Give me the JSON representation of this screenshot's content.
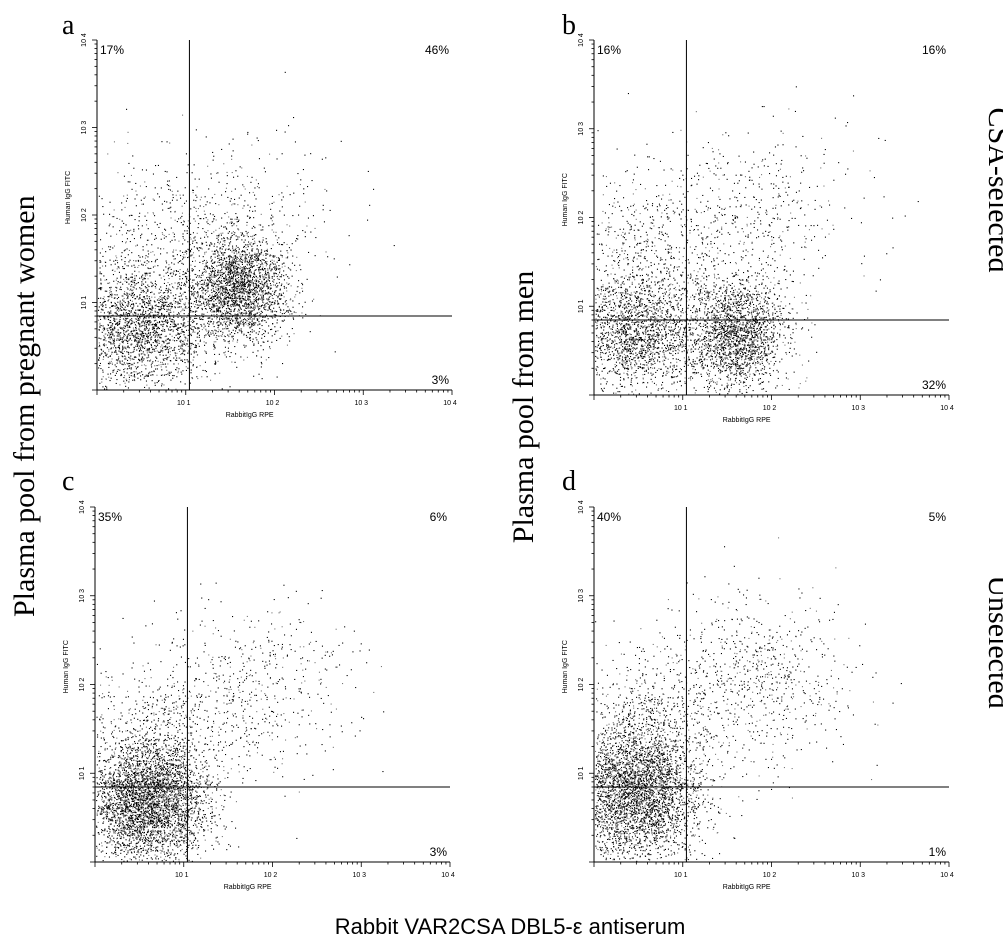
{
  "figure": {
    "left_label": "Plasma pool from pregnant women",
    "middle_label": "Plasma pool from men",
    "right_top_label": "CSA-selected",
    "right_bottom_label": "Unselected",
    "bottom_label": "Rabbit VAR2CSA DBL5-ε antiserum"
  },
  "chart_data": [
    {
      "type": "scatter",
      "panel": "a",
      "xlabel": "RabbitIgG RPE",
      "ylabel": "Human IgG FITC",
      "xscale": "log",
      "yscale": "log",
      "xlim": [
        1,
        10000
      ],
      "ylim": [
        1,
        10000
      ],
      "x_ticks": [
        "10 1",
        "10 2",
        "10 3",
        "10 4"
      ],
      "y_ticks": [
        "10 1",
        "10 2",
        "10 3",
        "10 4"
      ],
      "gate": {
        "x": 11,
        "y": 7
      },
      "quadrants": {
        "UL": "17%",
        "UR": "46%",
        "LR": "3%"
      },
      "populations": [
        {
          "cx": 3,
          "cy": 5,
          "sx": 2.6,
          "sy": 2.2,
          "n": 2200
        },
        {
          "cx": 40,
          "cy": 15,
          "sx": 1.9,
          "sy": 2.0,
          "n": 2400
        },
        {
          "cx": 4,
          "cy": 40,
          "sx": 3,
          "sy": 3,
          "n": 500
        },
        {
          "cx": 40,
          "cy": 90,
          "sx": 4,
          "sy": 3,
          "n": 350
        }
      ]
    },
    {
      "type": "scatter",
      "panel": "b",
      "xlabel": "RabbitIgG RPE",
      "ylabel": "Human IgG FITC",
      "xscale": "log",
      "yscale": "log",
      "xlim": [
        1,
        10000
      ],
      "ylim": [
        1,
        10000
      ],
      "x_ticks": [
        "10 1",
        "10 2",
        "10 3",
        "10 4"
      ],
      "y_ticks": [
        "10 1",
        "10 2",
        "10 3",
        "10 4"
      ],
      "gate": {
        "x": 11,
        "y": 7
      },
      "quadrants": {
        "UL": "16%",
        "UR": "16%",
        "LR": "32%"
      },
      "populations": [
        {
          "cx": 3,
          "cy": 5,
          "sx": 2.6,
          "sy": 2.2,
          "n": 2000
        },
        {
          "cx": 40,
          "cy": 5,
          "sx": 1.9,
          "sy": 2.0,
          "n": 2000
        },
        {
          "cx": 4,
          "cy": 40,
          "sx": 3,
          "sy": 3,
          "n": 600
        },
        {
          "cx": 60,
          "cy": 120,
          "sx": 4,
          "sy": 3,
          "n": 450
        }
      ]
    },
    {
      "type": "scatter",
      "panel": "c",
      "xlabel": "RabbitIgG RPE",
      "ylabel": "Human IgG FITC",
      "xscale": "log",
      "yscale": "log",
      "xlim": [
        1,
        10000
      ],
      "ylim": [
        1,
        10000
      ],
      "x_ticks": [
        "10 1",
        "10 2",
        "10 3",
        "10 4"
      ],
      "y_ticks": [
        "10 1",
        "10 2",
        "10 3",
        "10 4"
      ],
      "gate": {
        "x": 11,
        "y": 7
      },
      "quadrants": {
        "UL": "35%",
        "UR": "6%",
        "LR": "3%"
      },
      "populations": [
        {
          "cx": 4,
          "cy": 5,
          "sx": 2.2,
          "sy": 2.2,
          "n": 3800
        },
        {
          "cx": 5,
          "cy": 35,
          "sx": 2.8,
          "sy": 2.6,
          "n": 500
        },
        {
          "cx": 70,
          "cy": 100,
          "sx": 3.5,
          "sy": 3,
          "n": 500
        }
      ]
    },
    {
      "type": "scatter",
      "panel": "d",
      "xlabel": "RabbitIgG RPE",
      "ylabel": "Human IgG FITC",
      "xscale": "log",
      "yscale": "log",
      "xlim": [
        1,
        10000
      ],
      "ylim": [
        1,
        10000
      ],
      "x_ticks": [
        "10 1",
        "10 2",
        "10 3",
        "10 4"
      ],
      "y_ticks": [
        "10 1",
        "10 2",
        "10 3",
        "10 4"
      ],
      "gate": {
        "x": 11,
        "y": 7
      },
      "quadrants": {
        "UL": "40%",
        "UR": "5%",
        "LR": "1%"
      },
      "populations": [
        {
          "cx": 3,
          "cy": 6,
          "sx": 2.3,
          "sy": 2.4,
          "n": 3600
        },
        {
          "cx": 5,
          "cy": 45,
          "sx": 2.8,
          "sy": 2.6,
          "n": 600
        },
        {
          "cx": 70,
          "cy": 120,
          "sx": 3.5,
          "sy": 3,
          "n": 700
        }
      ]
    }
  ]
}
